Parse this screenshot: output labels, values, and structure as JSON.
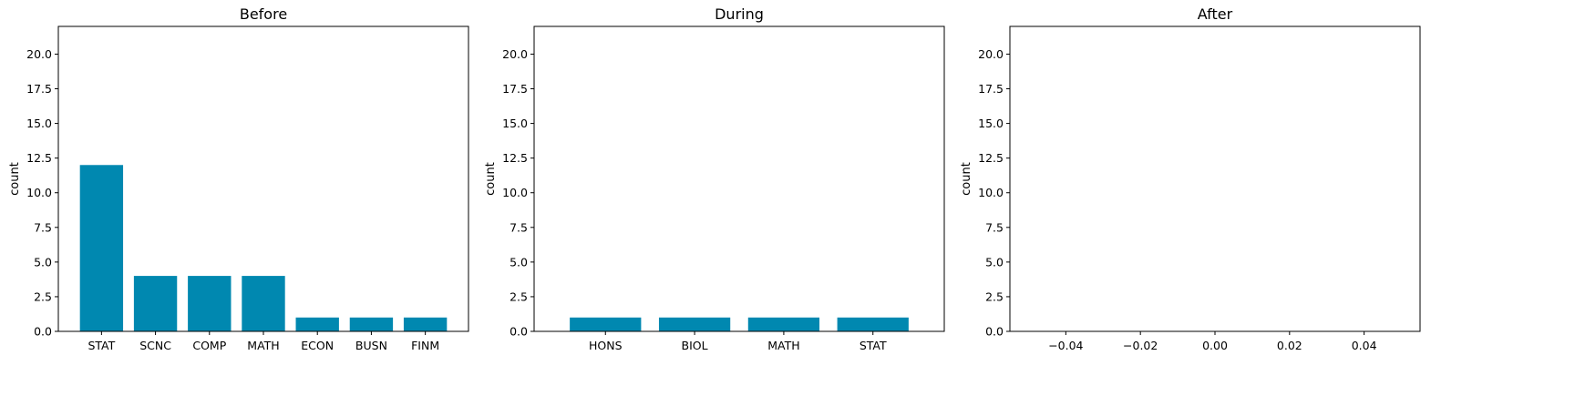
{
  "colors": {
    "bar": "#0088b0",
    "axis": "#000000",
    "background": "#ffffff"
  },
  "chart_data": [
    {
      "type": "bar",
      "title": "Before",
      "xlabel": "",
      "ylabel": "count",
      "ylim": [
        0,
        22
      ],
      "yticks": [
        "0.0",
        "2.5",
        "5.0",
        "7.5",
        "10.0",
        "12.5",
        "15.0",
        "17.5",
        "20.0"
      ],
      "categories": [
        "STAT",
        "SCNC",
        "COMP",
        "MATH",
        "ECON",
        "BUSN",
        "FINM"
      ],
      "values": [
        12,
        4,
        4,
        4,
        1,
        1,
        1
      ],
      "grid": false
    },
    {
      "type": "bar",
      "title": "During",
      "xlabel": "",
      "ylabel": "count",
      "ylim": [
        0,
        22
      ],
      "yticks": [
        "0.0",
        "2.5",
        "5.0",
        "7.5",
        "10.0",
        "12.5",
        "15.0",
        "17.5",
        "20.0"
      ],
      "categories": [
        "HONS",
        "BIOL",
        "MATH",
        "STAT"
      ],
      "values": [
        1,
        1,
        1,
        1
      ],
      "grid": false
    },
    {
      "type": "bar",
      "title": "After",
      "xlabel": "",
      "ylabel": "count",
      "ylim": [
        0,
        22
      ],
      "yticks": [
        "0.0",
        "2.5",
        "5.0",
        "7.5",
        "10.0",
        "12.5",
        "15.0",
        "17.5",
        "20.0"
      ],
      "xlim": [
        -0.055,
        0.055
      ],
      "xticks": [
        "−0.04",
        "−0.02",
        "0.00",
        "0.02",
        "0.04"
      ],
      "categories": [],
      "values": [],
      "grid": false
    }
  ]
}
